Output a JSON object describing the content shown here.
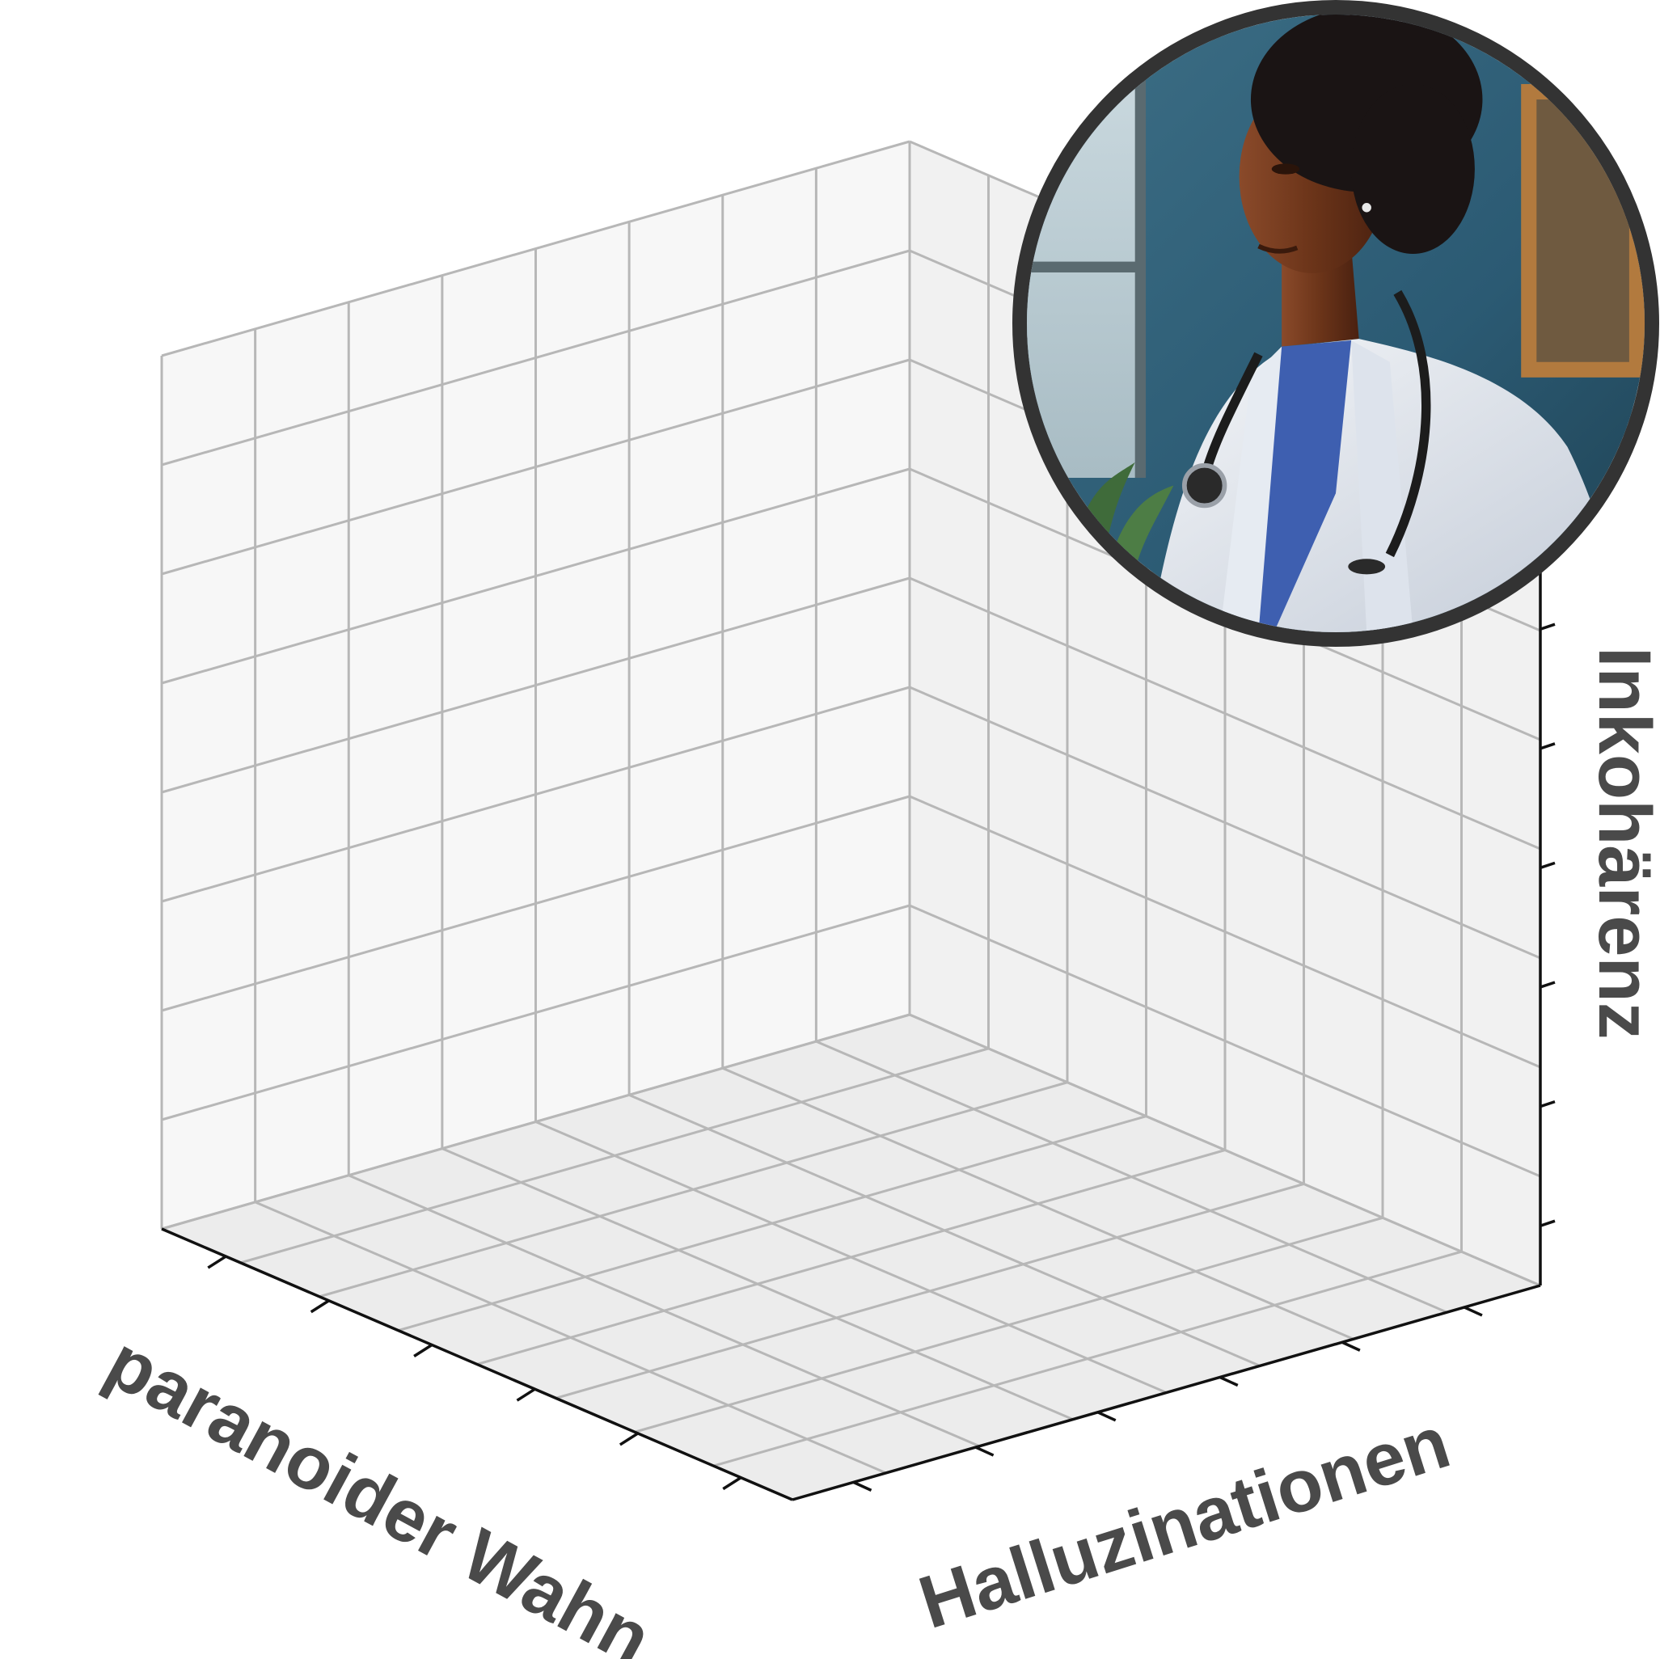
{
  "chart_data": {
    "type": "scatter",
    "projection": "3d",
    "title": "",
    "xlabel": "paranoider Wahn",
    "ylabel": "Halluzinationen",
    "zlabel": "Inkohärenz",
    "grid": true,
    "x_tick_count": 6,
    "y_tick_count": 6,
    "z_tick_count": 6,
    "x_tick_labels": [],
    "y_tick_labels": [],
    "z_tick_labels": [],
    "series": []
  },
  "colors": {
    "pane_left": "#f7f7f7",
    "pane_right": "#f1f1f1",
    "pane_floor": "#ececec",
    "grid": "#b7b7b7",
    "axis": "#111111",
    "label": "#4a4a4a",
    "portrait_border": "#333333"
  },
  "inset_image": {
    "subject": "painted portrait of a doctor in a white coat with a stethoscope",
    "icon": "doctor-portrait"
  }
}
